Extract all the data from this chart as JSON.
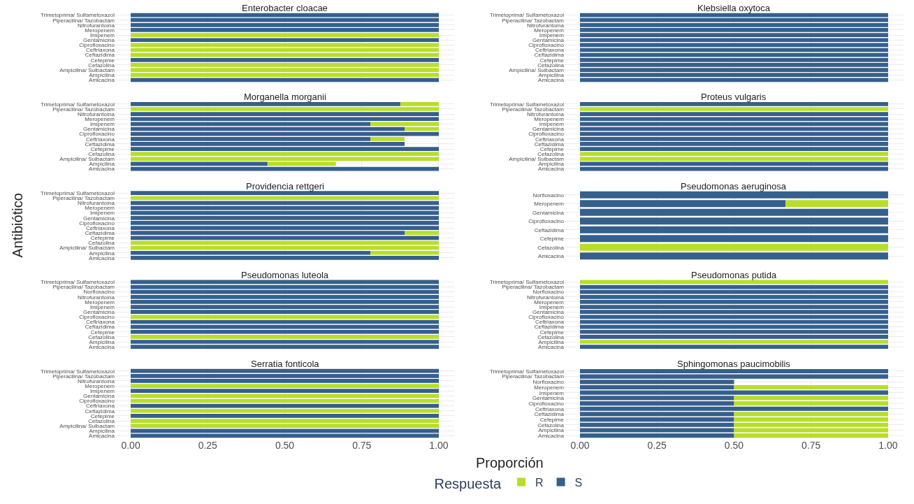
{
  "chart_data": [
    {
      "type": "bar",
      "orientation": "horizontal",
      "stacked": true,
      "title": "Enterobacter cloacae",
      "legend_title": "Respuesta",
      "legend": "bottom",
      "grid": true,
      "tick_labels": "y",
      "xlim": [
        -0.05,
        1.05
      ],
      "xticks": [
        {
          "value": 0,
          "label": "0.00"
        },
        {
          "value": 0.25,
          "label": "0.25"
        },
        {
          "value": 0.5,
          "label": "0.50"
        },
        {
          "value": 0.75,
          "label": "0.75"
        },
        {
          "value": 1,
          "label": "1.00"
        }
      ],
      "categories": [
        "Trimetoprima/ Sulfametoxazol",
        "Piperacilina/ Tazobactam",
        "Nitrofurantoína",
        "Meropenem",
        "Imipenem",
        "Gentamicina",
        "Ciprofloxacino",
        "Ceftriaxona",
        "Ceftazidima",
        "Cefepime",
        "Cefazolina",
        "Ampicilina/ Sulbactam",
        "Ampicilina",
        "Amicacina"
      ],
      "series": [
        {
          "name": "S",
          "color": "#355f8d",
          "values": [
            1,
            1,
            1,
            1,
            null,
            1,
            null,
            null,
            null,
            1,
            null,
            null,
            null,
            1
          ]
        },
        {
          "name": "R",
          "color": "#b8de29",
          "values": [
            null,
            null,
            null,
            null,
            1,
            null,
            1,
            1,
            1,
            null,
            1,
            1,
            1,
            null
          ]
        }
      ]
    },
    {
      "type": "bar",
      "orientation": "horizontal",
      "stacked": true,
      "title": "Klebsiella oxytoca",
      "grid": true,
      "tick_labels": "y",
      "xlim": [
        -0.05,
        1.05
      ],
      "xticks": [
        {
          "value": 0,
          "label": "0.00"
        },
        {
          "value": 0.25,
          "label": "0.25"
        },
        {
          "value": 0.5,
          "label": "0.50"
        },
        {
          "value": 0.75,
          "label": "0.75"
        },
        {
          "value": 1,
          "label": "1.00"
        }
      ],
      "categories": [
        "Trimetoprima/ Sulfametoxazol",
        "Piperacilina/ Tazobactam",
        "Nitrofurantoína",
        "Meropenem",
        "Imipenem",
        "Gentamicina",
        "Ciprofloxacino",
        "Ceftriaxona",
        "Ceftazidima",
        "Cefepime",
        "Cefazolina",
        "Ampicilina/ Sulbactam",
        "Ampicilina",
        "Amicacina"
      ],
      "series": [
        {
          "name": "S",
          "color": "#355f8d",
          "values": [
            1,
            1,
            1,
            1,
            1,
            1,
            1,
            1,
            1,
            1,
            1,
            1,
            1,
            1
          ]
        },
        {
          "name": "R",
          "color": "#b8de29",
          "values": [
            null,
            null,
            null,
            null,
            null,
            null,
            null,
            null,
            null,
            null,
            null,
            null,
            null,
            null
          ]
        }
      ]
    },
    {
      "type": "bar",
      "orientation": "horizontal",
      "stacked": true,
      "title": "Morganella morganii",
      "grid": true,
      "tick_labels": "y",
      "xlim": [
        -0.05,
        1.05
      ],
      "xticks": [
        {
          "value": 0,
          "label": "0.00"
        },
        {
          "value": 0.25,
          "label": "0.25"
        },
        {
          "value": 0.5,
          "label": "0.50"
        },
        {
          "value": 0.75,
          "label": "0.75"
        },
        {
          "value": 1,
          "label": "1.00"
        }
      ],
      "categories": [
        "Trimetoprima/ Sulfametoxazol",
        "Piperacilina/ Tazobactam",
        "Nitrofurantoína",
        "Meropenem",
        "Imipenem",
        "Gentamicina",
        "Ciprofloxacino",
        "Ceftriaxona",
        "Ceftazidima",
        "Cefepime",
        "Cefazolina",
        "Ampicilina/ Sulbactam",
        "Ampicilina",
        "Amicacina"
      ],
      "series": [
        {
          "name": "S",
          "color": "#355f8d",
          "values": [
            0.875,
            null,
            1,
            1,
            0.778,
            0.889,
            1,
            0.778,
            0.889,
            1,
            null,
            null,
            0.444,
            1
          ]
        },
        {
          "name": "R",
          "color": "#b8de29",
          "values": [
            0.125,
            1,
            null,
            null,
            0.222,
            0.111,
            null,
            0.111,
            null,
            null,
            1,
            1,
            0.222,
            null
          ]
        }
      ]
    },
    {
      "type": "bar",
      "orientation": "horizontal",
      "stacked": true,
      "title": "Proteus vulgaris",
      "grid": true,
      "tick_labels": "y",
      "xlim": [
        -0.05,
        1.05
      ],
      "xticks": [
        {
          "value": 0,
          "label": "0.00"
        },
        {
          "value": 0.25,
          "label": "0.25"
        },
        {
          "value": 0.5,
          "label": "0.50"
        },
        {
          "value": 0.75,
          "label": "0.75"
        },
        {
          "value": 1,
          "label": "1.00"
        }
      ],
      "categories": [
        "Trimetoprima/ Sulfametoxazol",
        "Piperacilina/ Tazobactam",
        "Nitrofurantoína",
        "Meropenem",
        "Imipenem",
        "Gentamicina",
        "Ciprofloxacino",
        "Ceftriaxona",
        "Ceftazidima",
        "Cefepime",
        "Cefazolina",
        "Ampicilina/ Sulbactam",
        "Ampicilina",
        "Amicacina"
      ],
      "series": [
        {
          "name": "S",
          "color": "#355f8d",
          "values": [
            1,
            null,
            1,
            1,
            1,
            1,
            1,
            1,
            1,
            1,
            null,
            null,
            1,
            1
          ]
        },
        {
          "name": "R",
          "color": "#b8de29",
          "values": [
            null,
            1,
            null,
            null,
            null,
            null,
            null,
            null,
            null,
            null,
            1,
            1,
            null,
            null
          ]
        }
      ]
    },
    {
      "type": "bar",
      "orientation": "horizontal",
      "stacked": true,
      "title": "Providencia rettgeri",
      "ylabel": "Antibiótico",
      "grid": true,
      "tick_labels": "y",
      "xlim": [
        -0.05,
        1.05
      ],
      "xticks": [
        {
          "value": 0,
          "label": "0.00"
        },
        {
          "value": 0.25,
          "label": "0.25"
        },
        {
          "value": 0.5,
          "label": "0.50"
        },
        {
          "value": 0.75,
          "label": "0.75"
        },
        {
          "value": 1,
          "label": "1.00"
        }
      ],
      "categories": [
        "Trimetoprima/ Sulfametoxazol",
        "Piperacilina/ Tazobactam",
        "Nitrofurantoína",
        "Meropenem",
        "Imipenem",
        "Gentamicina",
        "Ciprofloxacino",
        "Ceftriaxona",
        "Ceftazidima",
        "Cefepime",
        "Cefazolina",
        "Ampicilina/ Sulbactam",
        "Ampicilina",
        "Amicacina"
      ],
      "series": [
        {
          "name": "S",
          "color": "#355f8d",
          "values": [
            1,
            null,
            1,
            1,
            1,
            1,
            1,
            1,
            0.889,
            1,
            null,
            null,
            0.778,
            1
          ]
        },
        {
          "name": "R",
          "color": "#b8de29",
          "values": [
            null,
            1,
            null,
            null,
            null,
            null,
            null,
            null,
            0.111,
            null,
            1,
            1,
            0.222,
            null
          ]
        }
      ]
    },
    {
      "type": "bar",
      "orientation": "horizontal",
      "stacked": true,
      "title": "Pseudomonas aeruginosa",
      "grid": true,
      "tick_labels": "y",
      "xlim": [
        -0.05,
        1.05
      ],
      "xticks": [
        {
          "value": 0,
          "label": "0.00"
        },
        {
          "value": 0.25,
          "label": "0.25"
        },
        {
          "value": 0.5,
          "label": "0.50"
        },
        {
          "value": 0.75,
          "label": "0.75"
        },
        {
          "value": 1,
          "label": "1.00"
        }
      ],
      "categories": [
        "Norfloxacino",
        "Meropenem",
        "Gentamicina",
        "Ciprofloxacino",
        "Ceftazidima",
        "Cefepime",
        "Cefazolina",
        "Amicacina"
      ],
      "series": [
        {
          "name": "S",
          "color": "#355f8d",
          "values": [
            1,
            0.667,
            1,
            1,
            1,
            1,
            null,
            1
          ]
        },
        {
          "name": "R",
          "color": "#b8de29",
          "values": [
            null,
            0.333,
            null,
            null,
            null,
            null,
            1,
            null
          ]
        }
      ]
    },
    {
      "type": "bar",
      "orientation": "horizontal",
      "stacked": true,
      "title": "Pseudomonas luteola",
      "grid": true,
      "tick_labels": "y",
      "xlim": [
        -0.05,
        1.05
      ],
      "xticks": [
        {
          "value": 0,
          "label": "0.00"
        },
        {
          "value": 0.25,
          "label": "0.25"
        },
        {
          "value": 0.5,
          "label": "0.50"
        },
        {
          "value": 0.75,
          "label": "0.75"
        },
        {
          "value": 1,
          "label": "1.00"
        }
      ],
      "categories": [
        "Trimetoprima/ Sulfametoxazol",
        "Piperacilina/ Tazobactam",
        "Norfloxacino",
        "Nitrofurantoína",
        "Meropenem",
        "Imipenem",
        "Gentamicina",
        "Ciprofloxacino",
        "Ceftriaxona",
        "Ceftazidima",
        "Cefepime",
        "Cefazolina",
        "Ampicilina",
        "Amicacina"
      ],
      "series": [
        {
          "name": "S",
          "color": "#355f8d",
          "values": [
            1,
            1,
            1,
            1,
            1,
            1,
            1,
            null,
            1,
            1,
            1,
            null,
            1,
            1
          ]
        },
        {
          "name": "R",
          "color": "#b8de29",
          "values": [
            null,
            null,
            null,
            null,
            null,
            null,
            null,
            1,
            null,
            null,
            null,
            1,
            null,
            null
          ]
        }
      ]
    },
    {
      "type": "bar",
      "orientation": "horizontal",
      "stacked": true,
      "title": "Pseudomonas putida",
      "grid": true,
      "tick_labels": "y",
      "xlim": [
        -0.05,
        1.05
      ],
      "xticks": [
        {
          "value": 0,
          "label": "0.00"
        },
        {
          "value": 0.25,
          "label": "0.25"
        },
        {
          "value": 0.5,
          "label": "0.50"
        },
        {
          "value": 0.75,
          "label": "0.75"
        },
        {
          "value": 1,
          "label": "1.00"
        }
      ],
      "categories": [
        "Trimetoprima/ Sulfametoxazol",
        "Piperacilina/ Tazobactam",
        "Norfloxacino",
        "Nitrofurantoína",
        "Meropenem",
        "Imipenem",
        "Gentamicina",
        "Ciprofloxacino",
        "Ceftriaxona",
        "Ceftazidima",
        "Cefepime",
        "Cefazolina",
        "Ampicilina",
        "Amicacina"
      ],
      "series": [
        {
          "name": "S",
          "color": "#355f8d",
          "values": [
            null,
            1,
            1,
            1,
            1,
            1,
            1,
            1,
            1,
            1,
            1,
            1,
            null,
            1
          ]
        },
        {
          "name": "R",
          "color": "#b8de29",
          "values": [
            1,
            null,
            null,
            null,
            null,
            null,
            null,
            null,
            null,
            null,
            null,
            null,
            1,
            null
          ]
        }
      ]
    },
    {
      "type": "bar",
      "orientation": "horizontal",
      "stacked": true,
      "title": "Serratia fonticola",
      "grid": true,
      "xlim": [
        -0.05,
        1.05
      ],
      "xticks": [
        {
          "value": 0,
          "label": "0.00"
        },
        {
          "value": 0.25,
          "label": "0.25"
        },
        {
          "value": 0.5,
          "label": "0.50"
        },
        {
          "value": 0.75,
          "label": "0.75"
        },
        {
          "value": 1,
          "label": "1.00"
        }
      ],
      "xlabel": "Proporción",
      "categories": [
        "Trimetoprima/ Sulfametoxazol",
        "Piperacilina/ Tazobactam",
        "Nitrofurantoína",
        "Meropenem",
        "Imipenem",
        "Gentamicina",
        "Ciprofloxacino",
        "Ceftriaxona",
        "Ceftazidima",
        "Cefepime",
        "Cefazolina",
        "Ampicilina/ Sulbactam",
        "Ampicilina",
        "Amicacina"
      ],
      "series": [
        {
          "name": "S",
          "color": "#355f8d",
          "values": [
            1,
            1,
            1,
            null,
            1,
            null,
            null,
            1,
            null,
            1,
            null,
            null,
            1,
            1
          ]
        },
        {
          "name": "R",
          "color": "#b8de29",
          "values": [
            null,
            null,
            null,
            1,
            null,
            1,
            1,
            null,
            1,
            null,
            1,
            1,
            null,
            null
          ]
        }
      ]
    },
    {
      "type": "bar",
      "orientation": "horizontal",
      "stacked": true,
      "title": "Sphingomonas paucimobilis",
      "grid": true,
      "xlim": [
        -0.05,
        1.05
      ],
      "xticks": [
        {
          "value": 0,
          "label": "0.00"
        },
        {
          "value": 0.25,
          "label": "0.25"
        },
        {
          "value": 0.5,
          "label": "0.50"
        },
        {
          "value": 0.75,
          "label": "0.75"
        },
        {
          "value": 1,
          "label": "1.00"
        }
      ],
      "categories": [
        "Trimetoprima/ Sulfametoxazol",
        "Piperacilina/ Tazobactam",
        "Norfloxacino",
        "Meropenem",
        "Imipenem",
        "Gentamicina",
        "Ciprofloxacino",
        "Ceftriaxona",
        "Ceftazidima",
        "Cefepime",
        "Cefazolina",
        "Ampicilina",
        "Amicacina"
      ],
      "series": [
        {
          "name": "S",
          "color": "#355f8d",
          "values": [
            1,
            1,
            0.5,
            0.5,
            1,
            0.5,
            0.5,
            1,
            0.5,
            0.5,
            0.5,
            0.5,
            0.5
          ]
        },
        {
          "name": "R",
          "color": "#b8de29",
          "values": [
            null,
            null,
            null,
            0.5,
            null,
            0.5,
            0.5,
            null,
            0.5,
            0.5,
            0.5,
            0.5,
            0.5
          ]
        }
      ]
    }
  ]
}
